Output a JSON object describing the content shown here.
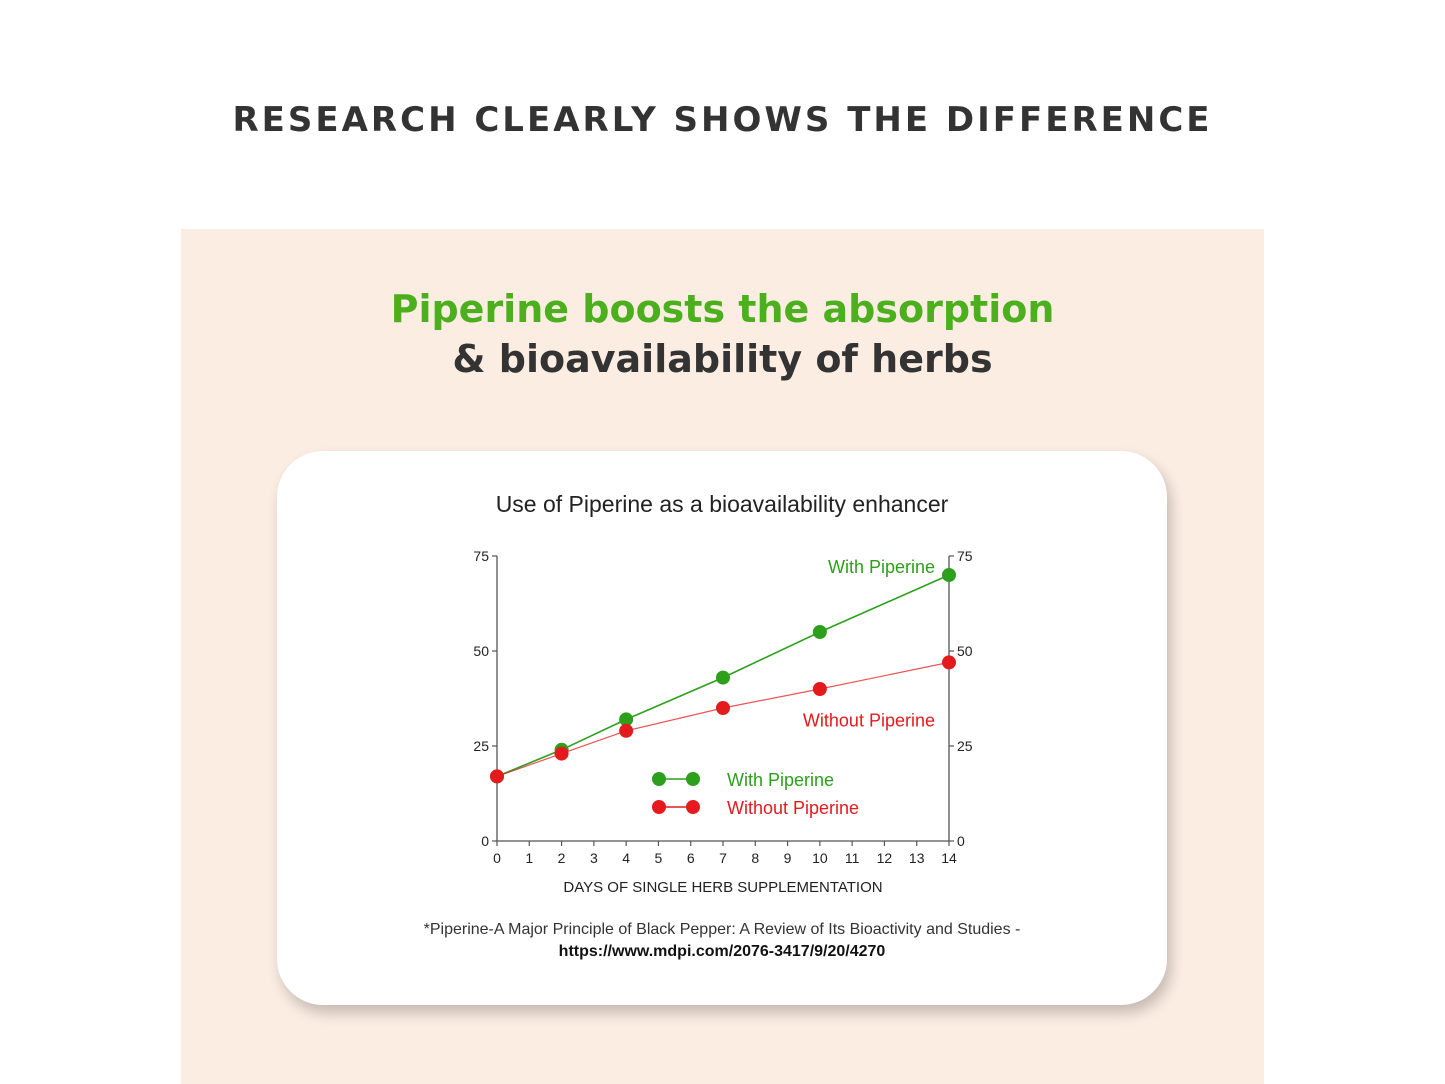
{
  "page": {
    "heading": "RESEARCH CLEARLY SHOWS THE DIFFERENCE"
  },
  "panel": {
    "headline_green": "Piperine boosts the absorption",
    "headline_dark": "& bioavailability of herbs",
    "colors": {
      "panel_bg": "#fcede3",
      "headline_green": "#4caf1e",
      "headline_dark": "#333333"
    }
  },
  "citation": {
    "text": "*Piperine-A Major Principle of Black Pepper: A Review of Its Bioactivity and Studies -",
    "url": "https://www.mdpi.com/2076-3417/9/20/4270"
  },
  "chart_data": {
    "type": "line",
    "title": "Use of Piperine as a bioavailability enhancer",
    "xlabel": "DAYS OF SINGLE HERB SUPPLEMENTATION",
    "ylabel": "",
    "x_ticks": [
      0,
      1,
      2,
      3,
      4,
      5,
      6,
      7,
      8,
      9,
      10,
      11,
      12,
      13,
      14
    ],
    "y_ticks": [
      0,
      25,
      50,
      75
    ],
    "xlim": [
      0,
      14
    ],
    "ylim": [
      0,
      75
    ],
    "secondary_y_axis": true,
    "grid": false,
    "legend_position": "center",
    "series": [
      {
        "name": "With Piperine",
        "color": "#2ca01c",
        "x": [
          0,
          2,
          4,
          7,
          10,
          14
        ],
        "y": [
          17,
          24,
          32,
          43,
          55,
          70
        ]
      },
      {
        "name": "Without Piperine",
        "color": "#e41a1c",
        "x": [
          0,
          2,
          4,
          7,
          10,
          14
        ],
        "y": [
          17,
          23,
          29,
          35,
          40,
          47
        ]
      }
    ],
    "annotations": [
      {
        "text": "With Piperine",
        "series": 0
      },
      {
        "text": "Without Piperine",
        "series": 1
      }
    ]
  }
}
